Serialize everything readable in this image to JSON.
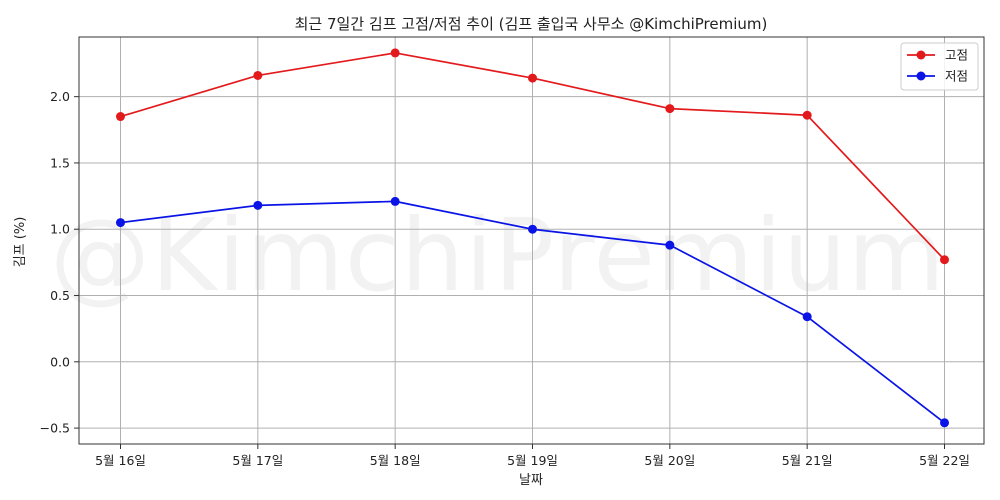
{
  "chart_data": {
    "type": "line",
    "title": "최근 7일간 김프 고점/저점 추이 (김프 출입국 사무소 @KimchiPremium)",
    "xlabel": "날짜",
    "ylabel": "김프 (%)",
    "categories": [
      "5월 16일",
      "5월 17일",
      "5월 18일",
      "5월 19일",
      "5월 20일",
      "5월 21일",
      "5월 22일"
    ],
    "series": [
      {
        "name": "고점",
        "color": "#e31a1c",
        "values": [
          1.85,
          2.16,
          2.33,
          2.14,
          1.91,
          1.86,
          0.77
        ]
      },
      {
        "name": "저점",
        "color": "#0a14e6",
        "values": [
          1.05,
          1.18,
          1.21,
          1.0,
          0.88,
          0.34,
          -0.46
        ]
      }
    ],
    "ylim": [
      -0.62,
      2.45
    ],
    "yticks": [
      -0.5,
      0.0,
      0.5,
      1.0,
      1.5,
      2.0
    ],
    "ytick_labels": [
      "−0.5",
      "0.0",
      "0.5",
      "1.0",
      "1.5",
      "2.0"
    ],
    "grid": true,
    "legend_position": "top-right",
    "watermark": "@KimchiPremium"
  }
}
